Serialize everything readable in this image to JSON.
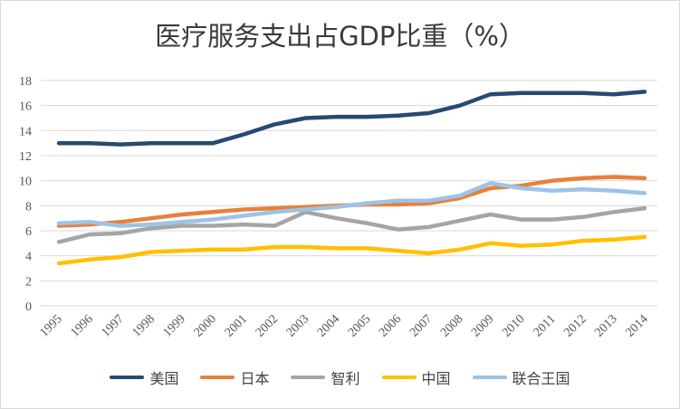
{
  "chart_data": {
    "type": "line",
    "title": "医疗服务支出占GDP比重（%）",
    "x": [
      "1995",
      "1996",
      "1997",
      "1998",
      "1999",
      "2000",
      "2001",
      "2002",
      "2003",
      "2004",
      "2005",
      "2006",
      "2007",
      "2008",
      "2009",
      "2010",
      "2011",
      "2012",
      "2013",
      "2014"
    ],
    "ylim": [
      0,
      18
    ],
    "yticks": [
      0,
      2,
      4,
      6,
      8,
      10,
      12,
      14,
      16,
      18
    ],
    "grid": "horizontal",
    "legend_position": "bottom",
    "series": [
      {
        "name": "美国",
        "color": "#264a70",
        "values": [
          13.0,
          13.0,
          12.9,
          13.0,
          13.0,
          13.0,
          13.7,
          14.5,
          15.0,
          15.1,
          15.1,
          15.2,
          15.4,
          16.0,
          16.9,
          17.0,
          17.0,
          17.0,
          16.9,
          17.1
        ]
      },
      {
        "name": "日本",
        "color": "#e8803a",
        "values": [
          6.4,
          6.5,
          6.7,
          7.0,
          7.3,
          7.5,
          7.7,
          7.8,
          7.9,
          8.0,
          8.1,
          8.1,
          8.2,
          8.6,
          9.4,
          9.6,
          10.0,
          10.2,
          10.3,
          10.2
        ]
      },
      {
        "name": "智利",
        "color": "#a5a5a5",
        "values": [
          5.1,
          5.7,
          5.8,
          6.2,
          6.4,
          6.4,
          6.5,
          6.4,
          7.5,
          7.0,
          6.6,
          6.1,
          6.3,
          6.8,
          7.3,
          6.9,
          6.9,
          7.1,
          7.5,
          7.8
        ]
      },
      {
        "name": "中国",
        "color": "#ffc000",
        "values": [
          3.4,
          3.7,
          3.9,
          4.3,
          4.4,
          4.5,
          4.5,
          4.7,
          4.7,
          4.6,
          4.6,
          4.4,
          4.2,
          4.5,
          5.0,
          4.8,
          4.9,
          5.2,
          5.3,
          5.5
        ]
      },
      {
        "name": "联合王国",
        "color": "#9dc3e6",
        "values": [
          6.6,
          6.7,
          6.4,
          6.5,
          6.7,
          6.9,
          7.2,
          7.5,
          7.7,
          7.9,
          8.2,
          8.4,
          8.4,
          8.8,
          9.8,
          9.4,
          9.2,
          9.3,
          9.2,
          9.0
        ]
      }
    ]
  }
}
